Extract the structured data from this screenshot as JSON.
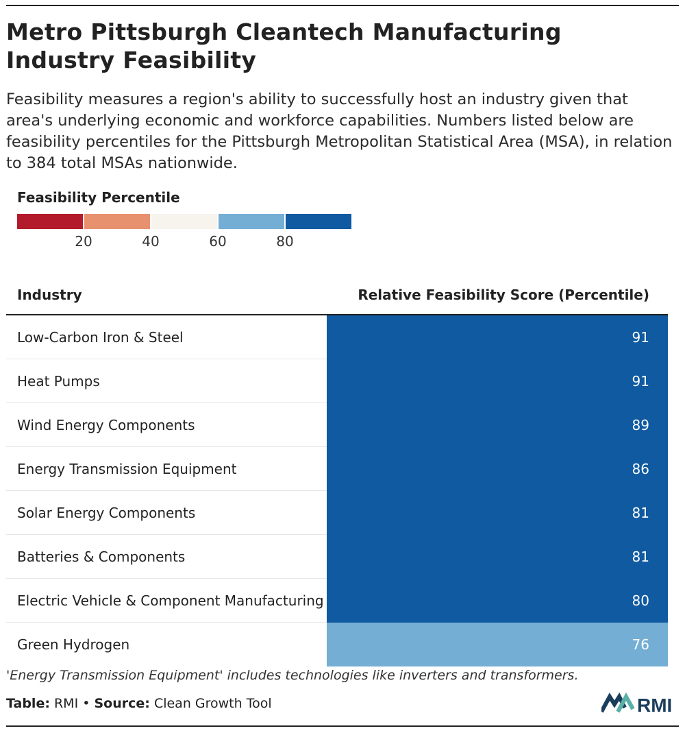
{
  "title": "Metro Pittsburgh Cleantech Manufacturing Industry Feasibility",
  "subtitle": "Feasibility measures a region's ability to successfully host an industry given that area's underlying economic and workforce capabilities. Numbers listed below are feasibility percentiles for the Pittsburgh Metropolitan Statistical Area (MSA), in relation to 384 total MSAs nationwide.",
  "legend": {
    "title": "Feasibility Percentile",
    "ticks": [
      "20",
      "40",
      "60",
      "80"
    ],
    "colors": [
      "#b31b2c",
      "#e8916f",
      "#f6f4ec",
      "#74aed4",
      "#0f5aa1"
    ]
  },
  "chart_data": {
    "type": "table",
    "columns": [
      "Industry",
      "Relative Feasibility Score (Percentile)"
    ],
    "rows": [
      {
        "industry": "Low-Carbon Iron & Steel",
        "value": 91
      },
      {
        "industry": "Heat Pumps",
        "value": 91
      },
      {
        "industry": "Wind Energy Components",
        "value": 89
      },
      {
        "industry": "Energy Transmission Equipment",
        "value": 86
      },
      {
        "industry": "Solar Energy Components",
        "value": 81
      },
      {
        "industry": "Batteries & Components",
        "value": 81
      },
      {
        "industry": "Electric Vehicle & Component Manufacturing",
        "value": 80
      },
      {
        "industry": "Green Hydrogen",
        "value": 76
      }
    ]
  },
  "note": "'Energy Transmission Equipment' includes technologies like inverters and transformers.",
  "footer": {
    "table_label": "Table:",
    "table_value": "RMI",
    "separator": "•",
    "source_label": "Source:",
    "source_value": "Clean Growth Tool",
    "logo_text": "RMI"
  }
}
